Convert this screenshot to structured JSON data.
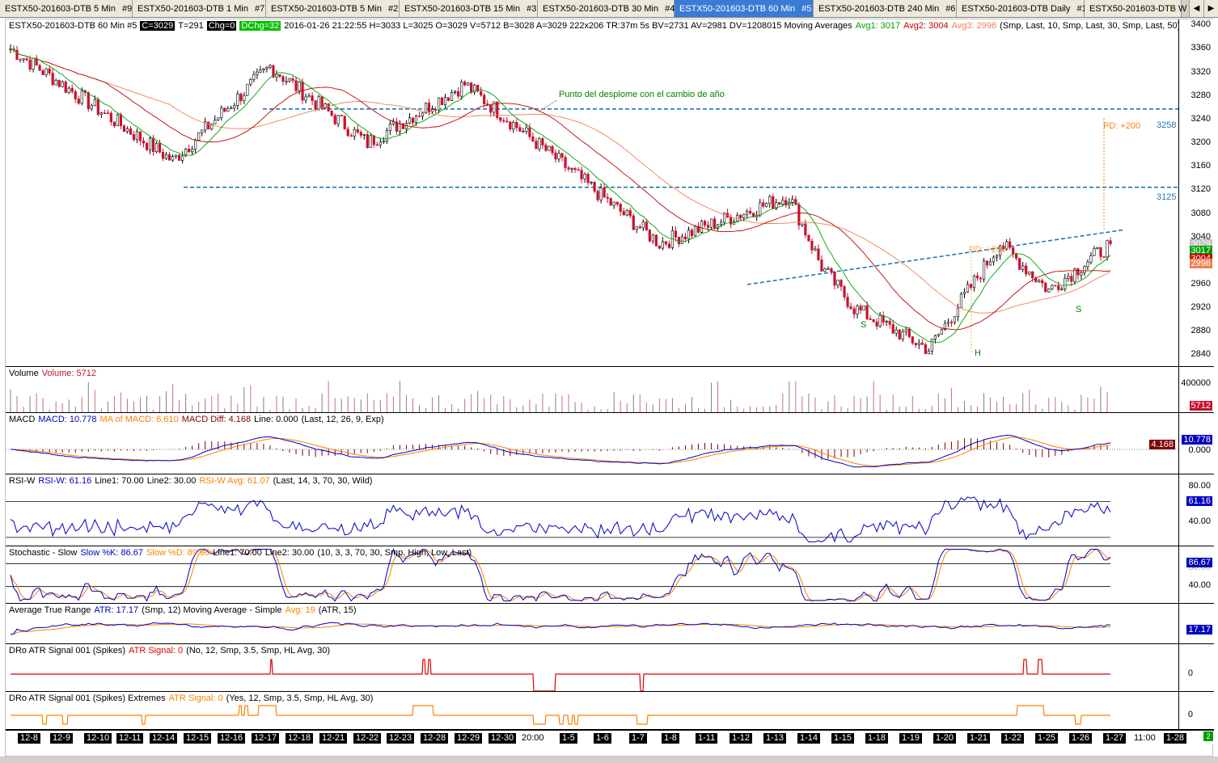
{
  "tabs": [
    {
      "label": "ESTX50-201603-DTB  5 Min",
      "id": "#9",
      "active": false
    },
    {
      "label": "ESTX50-201603-DTB  1 Min",
      "id": "#7",
      "active": false
    },
    {
      "label": "ESTX50-201603-DTB  5 Min",
      "id": "#2",
      "active": false
    },
    {
      "label": "ESTX50-201603-DTB  15 Min",
      "id": "#3",
      "active": false
    },
    {
      "label": "ESTX50-201603-DTB  30 Min",
      "id": "#4",
      "active": false
    },
    {
      "label": "ESTX50-201603-DTB  60 Min",
      "id": "#5",
      "active": true
    },
    {
      "label": "ESTX50-201603-DTB  240 Min",
      "id": "#6",
      "active": false
    },
    {
      "label": "ESTX50-201603-DTB  Daily",
      "id": "#1",
      "active": false
    },
    {
      "label": "ESTX50-201603-DTB  W",
      "id": "",
      "active": false
    }
  ],
  "tab_arrows": {
    "left": "◀",
    "right": "▶"
  },
  "header": {
    "symbol": "ESTX50-201603-DTB  60 Min   #5",
    "c": "C=3029",
    "t": "T=291",
    "chg": "Chg=0",
    "dchg": "DChg=32",
    "rest": "2016-01-26 21:22:55 H=3033 L=3025 O=3029 V=5712 B=3028 A=3029 222x206 TR:37m 5s BV=2731 AV=2981 DV=1208015  Moving Averages",
    "avg1": "Avg1: 3017",
    "avg2": "Avg2: 3004",
    "avg3": "Avg3: 2996",
    "ma_params": "(Smp, Last, 10, Smp, Last, 30, Smp, Last, 50)"
  },
  "annotations": {
    "note": "Punto del desplome con el cambio de año",
    "pd_upper": "PD: +200",
    "pd_lower": "PD: +200",
    "s_left": "S",
    "s_right": "S",
    "h": "H",
    "level_upper": "3258",
    "level_lower": "3125"
  },
  "colors": {
    "candle_up": "#000000",
    "candle_down": "#c8102e",
    "ma10": "#00a000",
    "ma30": "#c00000",
    "ma50": "#f08050",
    "level_line": "#1f77b4",
    "pd_line": "#ff8000",
    "macd": "#0000c0",
    "macd_avg": "#ff8000",
    "rsi": "#0000c0",
    "stoch_k": "#0000c0",
    "stoch_d": "#ff8000",
    "atr": "#0000c0",
    "atr_avg": "#ff8000",
    "signal1": "#e00000",
    "signal2": "#ff8000"
  },
  "price_axis": {
    "ticks": [
      "3400",
      "3360",
      "3320",
      "3280",
      "3240",
      "3200",
      "3160",
      "3120",
      "3080",
      "3040",
      "3000",
      "2960",
      "2920",
      "2880",
      "2840"
    ],
    "tag_3029": "3029",
    "tag_3017": "3017",
    "tag_3004": "3004",
    "tag_2996": "2996"
  },
  "volume_pane": {
    "title": "Volume",
    "value_label": "Volume: 5712",
    "tick": "400000",
    "tag": "5712"
  },
  "macd_pane": {
    "title": "MACD",
    "macd_label": "MACD: 10.778",
    "ma_label": "MA of MACD: 6.610",
    "diff_label": "MACD Diff: 4.168",
    "line_label": "Line: 0.000",
    "params": "(Last, 12, 26, 9, Exp)",
    "tick": "0.000",
    "tag_macd": "10.778",
    "tag_diff": "4.168"
  },
  "rsi_pane": {
    "title": "RSI-W",
    "rsi_label": "RSI-W: 61.16",
    "line1": "Line1: 70.00",
    "line2": "Line2: 30.00",
    "avg_label": "RSI-W Avg: 61.07",
    "params": "(Last, 14, 3, 70, 30, Wild)",
    "tick_high": "80.00",
    "tick_low": "40.00",
    "tag": "61.16"
  },
  "stoch_pane": {
    "title": "Stochastic - Slow",
    "k_label": "Slow %K: 86.67",
    "d_label": "Slow %D: 89.90",
    "line1": "Line1: 70.00",
    "line2": "Line2: 30.00",
    "params": "(10, 3, 3, 70, 30, Smp, High, Low, Last)",
    "tick_high": "80.00",
    "tick_low": "40.00",
    "tag": "86.67"
  },
  "atr_pane": {
    "title": "Average True Range",
    "atr_label": "ATR: 17.17",
    "params1": "(Smp, 12)  Moving Average - Simple",
    "avg_label": "Avg: 19",
    "params2": "(ATR, 15)",
    "tag": "17.17"
  },
  "signal_pane": {
    "title": "DRo ATR Signal 001 (Spikes)",
    "signal_label": "ATR Signal: 0",
    "params": "(No, 12, Smp, 3.5, Smp, HL Avg, 30)",
    "tick": "0"
  },
  "signal_ext_pane": {
    "title": "DRo ATR Signal 001 (Spikes) Extremes",
    "signal_label": "ATR Signal: 0",
    "params": "(Yes, 12, Smp, 3.5, Smp, HL Avg, 30)",
    "tick": "0"
  },
  "time_axis": {
    "labels": [
      {
        "t": "12-8",
        "tag": true
      },
      {
        "t": "12-9",
        "tag": true
      },
      {
        "t": "12-10",
        "tag": true
      },
      {
        "t": "12-11",
        "tag": true
      },
      {
        "t": "12-14",
        "tag": true
      },
      {
        "t": "12-15",
        "tag": true
      },
      {
        "t": "12-16",
        "tag": true
      },
      {
        "t": "12-17",
        "tag": true
      },
      {
        "t": "12-18",
        "tag": true
      },
      {
        "t": "12-21",
        "tag": true
      },
      {
        "t": "12-22",
        "tag": true
      },
      {
        "t": "12-23",
        "tag": true
      },
      {
        "t": "12-28",
        "tag": true
      },
      {
        "t": "12-29",
        "tag": true
      },
      {
        "t": "12-30",
        "tag": true
      },
      {
        "t": "20:00",
        "tag": false
      },
      {
        "t": "1-5",
        "tag": true
      },
      {
        "t": "1-6",
        "tag": true
      },
      {
        "t": "1-7",
        "tag": true
      },
      {
        "t": "1-8",
        "tag": true
      },
      {
        "t": "1-11",
        "tag": true
      },
      {
        "t": "1-12",
        "tag": true
      },
      {
        "t": "1-13",
        "tag": true
      },
      {
        "t": "1-14",
        "tag": true
      },
      {
        "t": "1-15",
        "tag": true
      },
      {
        "t": "1-18",
        "tag": true
      },
      {
        "t": "1-19",
        "tag": true
      },
      {
        "t": "1-20",
        "tag": true
      },
      {
        "t": "1-21",
        "tag": true
      },
      {
        "t": "1-22",
        "tag": true
      },
      {
        "t": "1-25",
        "tag": true
      },
      {
        "t": "1-26",
        "tag": true
      },
      {
        "t": "1-27",
        "tag": true
      },
      {
        "t": "11:00",
        "tag": false
      },
      {
        "t": "1-28",
        "tag": true
      }
    ],
    "corner": "2"
  },
  "chart_data": {
    "type": "candlestick",
    "price_range": [
      2820,
      3410
    ],
    "key_points": [
      {
        "date": "12-8",
        "close": 3360
      },
      {
        "date": "12-14",
        "close": 3170
      },
      {
        "date": "12-17",
        "close": 3330
      },
      {
        "date": "12-22",
        "close": 3200
      },
      {
        "date": "12-29",
        "close": 3300
      },
      {
        "date": "1-4",
        "close": 3210
      },
      {
        "date": "1-8",
        "close": 3030
      },
      {
        "date": "1-13",
        "close": 3110
      },
      {
        "date": "1-15",
        "close": 2990
      },
      {
        "date": "1-18",
        "close": 2920
      },
      {
        "date": "1-20",
        "close": 2850
      },
      {
        "date": "1-22",
        "close": 3030
      },
      {
        "date": "1-26",
        "close": 2950
      },
      {
        "date": "1-27",
        "close": 3029
      }
    ],
    "levels": [
      3258,
      3125
    ]
  }
}
